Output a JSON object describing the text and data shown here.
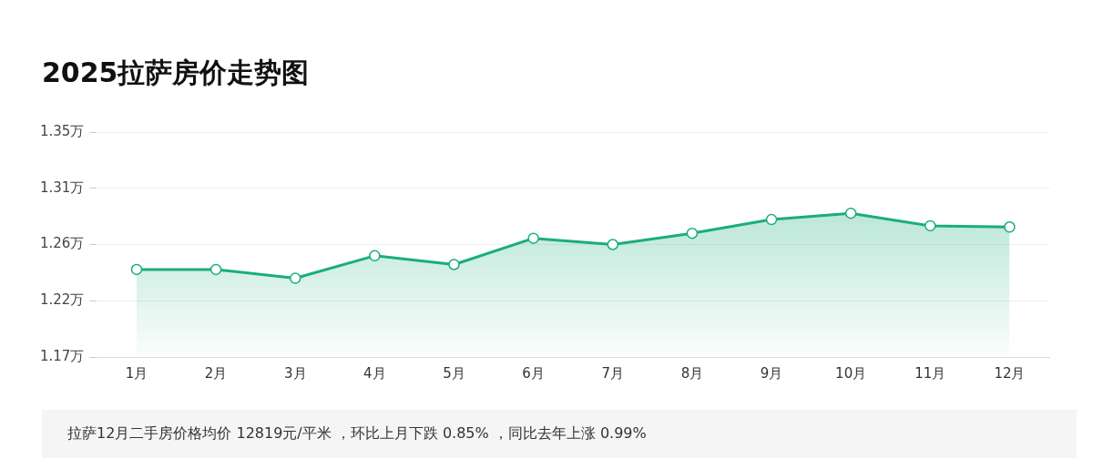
{
  "chart_data": {
    "type": "area",
    "title": "2025拉萨房价走势图",
    "categories": [
      "1月",
      "2月",
      "3月",
      "4月",
      "5月",
      "6月",
      "7月",
      "8月",
      "9月",
      "10月",
      "11月",
      "12月"
    ],
    "series": [
      {
        "color": "#1aad7e",
        "values": [
          1.24,
          1.24,
          1.233,
          1.251,
          1.244,
          1.265,
          1.26,
          1.269,
          1.28,
          1.285,
          1.275,
          1.274
        ]
      }
    ],
    "ylim": [
      1.17,
      1.35
    ],
    "yticks": [
      {
        "value": 1.17,
        "label": "1.17万"
      },
      {
        "value": 1.215,
        "label": "1.22万"
      },
      {
        "value": 1.26,
        "label": "1.26万"
      },
      {
        "value": 1.305,
        "label": "1.31万"
      },
      {
        "value": 1.35,
        "label": "1.35万"
      }
    ],
    "grid": "y",
    "marker": "circle",
    "legend": false,
    "annotations": [
      "拉萨12月二手房价格均价 12819元/平米 ，环比上月下跌 0.85% ，同比去年上涨 0.99%"
    ]
  }
}
